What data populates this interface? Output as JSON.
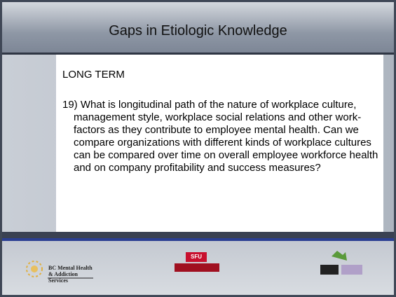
{
  "header": {
    "title": "Gaps in Etiologic Knowledge"
  },
  "body": {
    "heading": "LONG TERM",
    "paragraph": "19) What is longitudinal path of the nature of workplace culture, management style, workplace social relations and other work-factors as they contribute to employee mental health.  Can we compare organizations with different kinds of workplace cultures can be compared over time on overall employee workforce health and on company profitability and success measures?"
  },
  "footer": {
    "logo_left": "BC Mental Health & Addiction Services",
    "logo_center": "SFU"
  }
}
